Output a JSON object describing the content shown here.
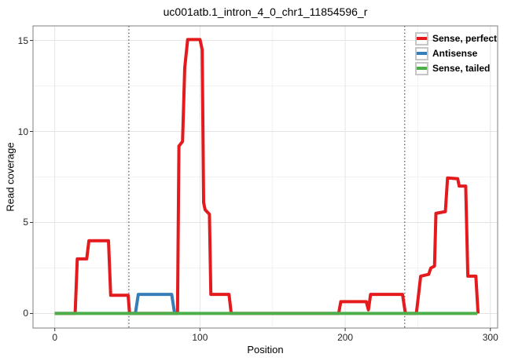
{
  "chart_data": {
    "type": "line",
    "title": "uc001atb.1_intron_4_0_chr1_11854596_r",
    "xlabel": "Position",
    "ylabel": "Read coverage",
    "xlim": [
      -15,
      305
    ],
    "ylim": [
      -0.8,
      15.8
    ],
    "x_ticks": [
      0,
      100,
      200,
      300
    ],
    "y_ticks": [
      0,
      5,
      10,
      15
    ],
    "x_minor_gridlines": [
      50,
      150,
      250
    ],
    "y_minor_gridlines": [
      2.5,
      7.5,
      12.5
    ],
    "grid": true,
    "panel_border": true,
    "boundary_vlines": [
      51,
      241
    ],
    "legend_position": "top-right",
    "series": [
      {
        "name": "Sense, perfect",
        "color": "#e41a1c",
        "points": [
          [
            0,
            0
          ],
          [
            14,
            0
          ],
          [
            15.5,
            3
          ],
          [
            22,
            3
          ],
          [
            23.5,
            4
          ],
          [
            37,
            4
          ],
          [
            38.5,
            1
          ],
          [
            50.5,
            1
          ],
          [
            51.5,
            0
          ],
          [
            84.5,
            0
          ],
          [
            85.5,
            9.2
          ],
          [
            88,
            9.45
          ],
          [
            89.5,
            13.5
          ],
          [
            91.5,
            15.05
          ],
          [
            100,
            15.05
          ],
          [
            101.5,
            14.5
          ],
          [
            102.5,
            6.1
          ],
          [
            103.5,
            5.7
          ],
          [
            106.5,
            5.45
          ],
          [
            107.5,
            1.05
          ],
          [
            120,
            1.05
          ],
          [
            121.5,
            0
          ],
          [
            195.5,
            0
          ],
          [
            197,
            0.65
          ],
          [
            214.5,
            0.65
          ],
          [
            216,
            0.2
          ],
          [
            217.5,
            1.05
          ],
          [
            239.5,
            1.05
          ],
          [
            241.5,
            0
          ],
          [
            249,
            0
          ],
          [
            250.5,
            1.0
          ],
          [
            252,
            2.05
          ],
          [
            257.5,
            2.15
          ],
          [
            259,
            2.5
          ],
          [
            261.5,
            2.6
          ],
          [
            262.5,
            5.5
          ],
          [
            269,
            5.6
          ],
          [
            270.5,
            7.45
          ],
          [
            277.5,
            7.4
          ],
          [
            278.5,
            7.0
          ],
          [
            283,
            7.0
          ],
          [
            284.5,
            2.05
          ],
          [
            290,
            2.05
          ],
          [
            291.5,
            0
          ]
        ]
      },
      {
        "name": "Antisense",
        "color": "#377eb8",
        "points": [
          [
            51.5,
            0
          ],
          [
            55.5,
            0
          ],
          [
            57.5,
            1.05
          ],
          [
            80.5,
            1.05
          ],
          [
            82.5,
            0
          ],
          [
            84.5,
            0
          ]
        ]
      },
      {
        "name": "Sense, tailed",
        "color": "#4daf4a",
        "points": [
          [
            0,
            0
          ],
          [
            291,
            0
          ]
        ]
      }
    ],
    "style_colors": {
      "grid_major": "#e4e4e4",
      "grid_minor": "#f2f2f2",
      "panel_border": "#7f7f7f",
      "boundary_line": "#4d4d4d",
      "tick": "#333333"
    }
  }
}
